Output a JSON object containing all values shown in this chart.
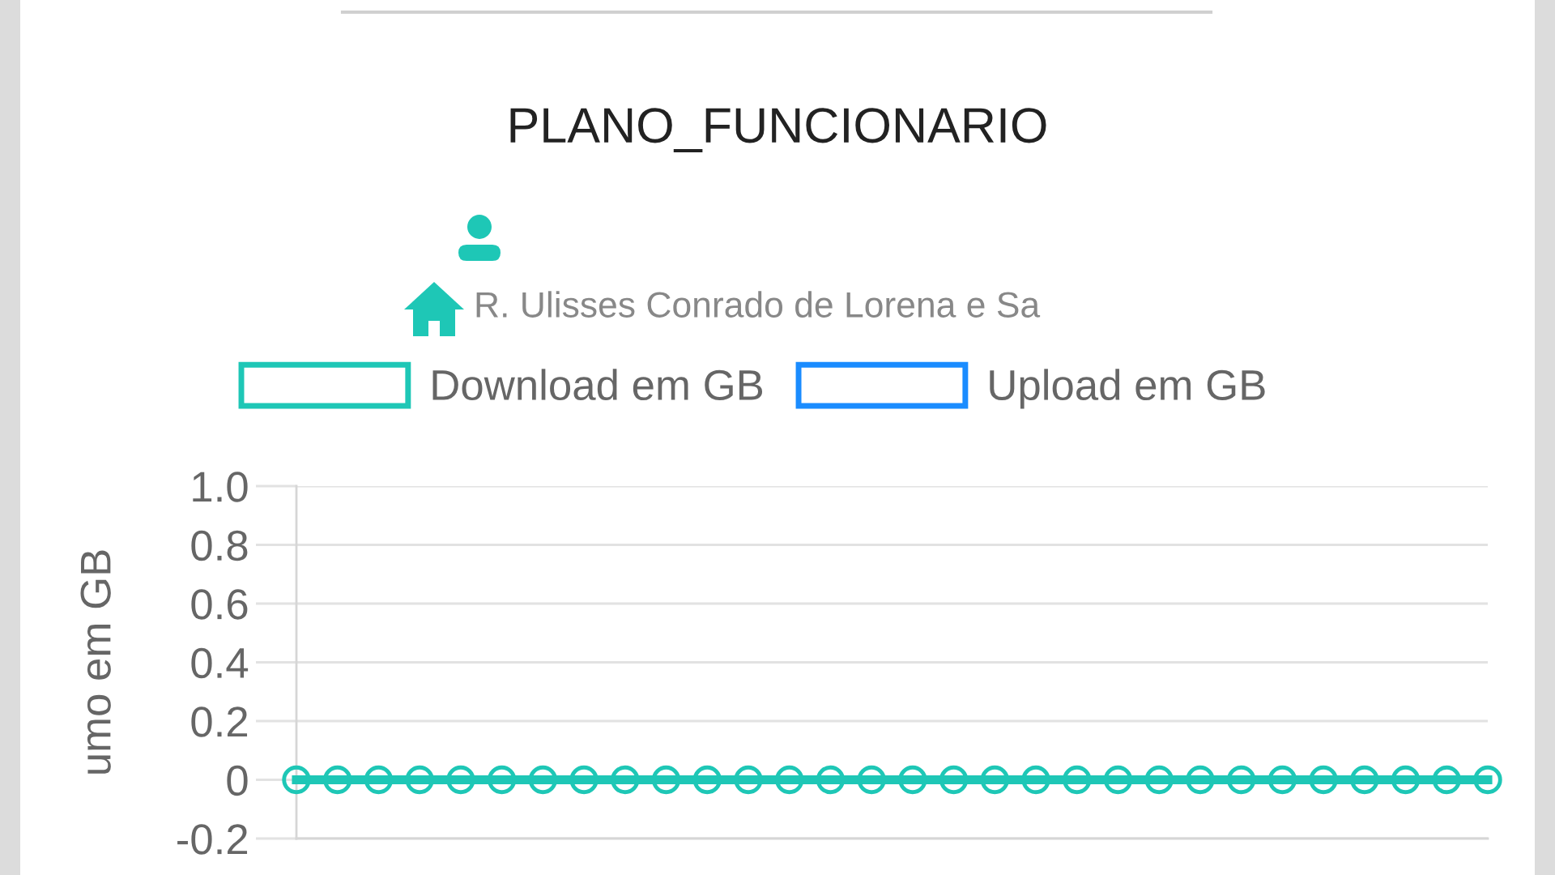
{
  "chart_data": {
    "type": "line",
    "title": "PLANO_FUNCIONARIO",
    "subtitle": "R. Ulisses Conrado de Lorena e Sa",
    "ylabel": "umo em GB",
    "categories": [
      null,
      null,
      null,
      null,
      null,
      null,
      null,
      null,
      null,
      null,
      null,
      null,
      null,
      null,
      null,
      null,
      null,
      null,
      null,
      null,
      null,
      null,
      null,
      null,
      null,
      null,
      null,
      null,
      null,
      null
    ],
    "series": [
      {
        "name": "Download em GB",
        "color": "#1ec7b6",
        "values": [
          0,
          0,
          0,
          0,
          0,
          0,
          0,
          0,
          0,
          0,
          0,
          0,
          0,
          0,
          0,
          0,
          0,
          0,
          0,
          0,
          0,
          0,
          0,
          0,
          0,
          0,
          0,
          0,
          0,
          0
        ]
      },
      {
        "name": "Upload em GB",
        "color": "#1a8cff",
        "values": [
          null,
          null,
          null,
          null,
          null,
          null,
          null,
          null,
          null,
          null,
          null,
          null,
          null,
          null,
          null,
          null,
          null,
          null,
          null,
          null,
          null,
          null,
          null,
          null,
          null,
          null,
          null,
          null,
          null,
          null
        ]
      }
    ],
    "ylim": [
      -0.2,
      1.0
    ],
    "yticks": [
      {
        "value": 1,
        "label": "1.0"
      },
      0.8,
      0.6,
      0.4,
      0.2,
      0,
      -0.2
    ],
    "grid": "y",
    "legend": "top",
    "marker": "circle",
    "line_style": "solid",
    "tick_labels": "y"
  }
}
